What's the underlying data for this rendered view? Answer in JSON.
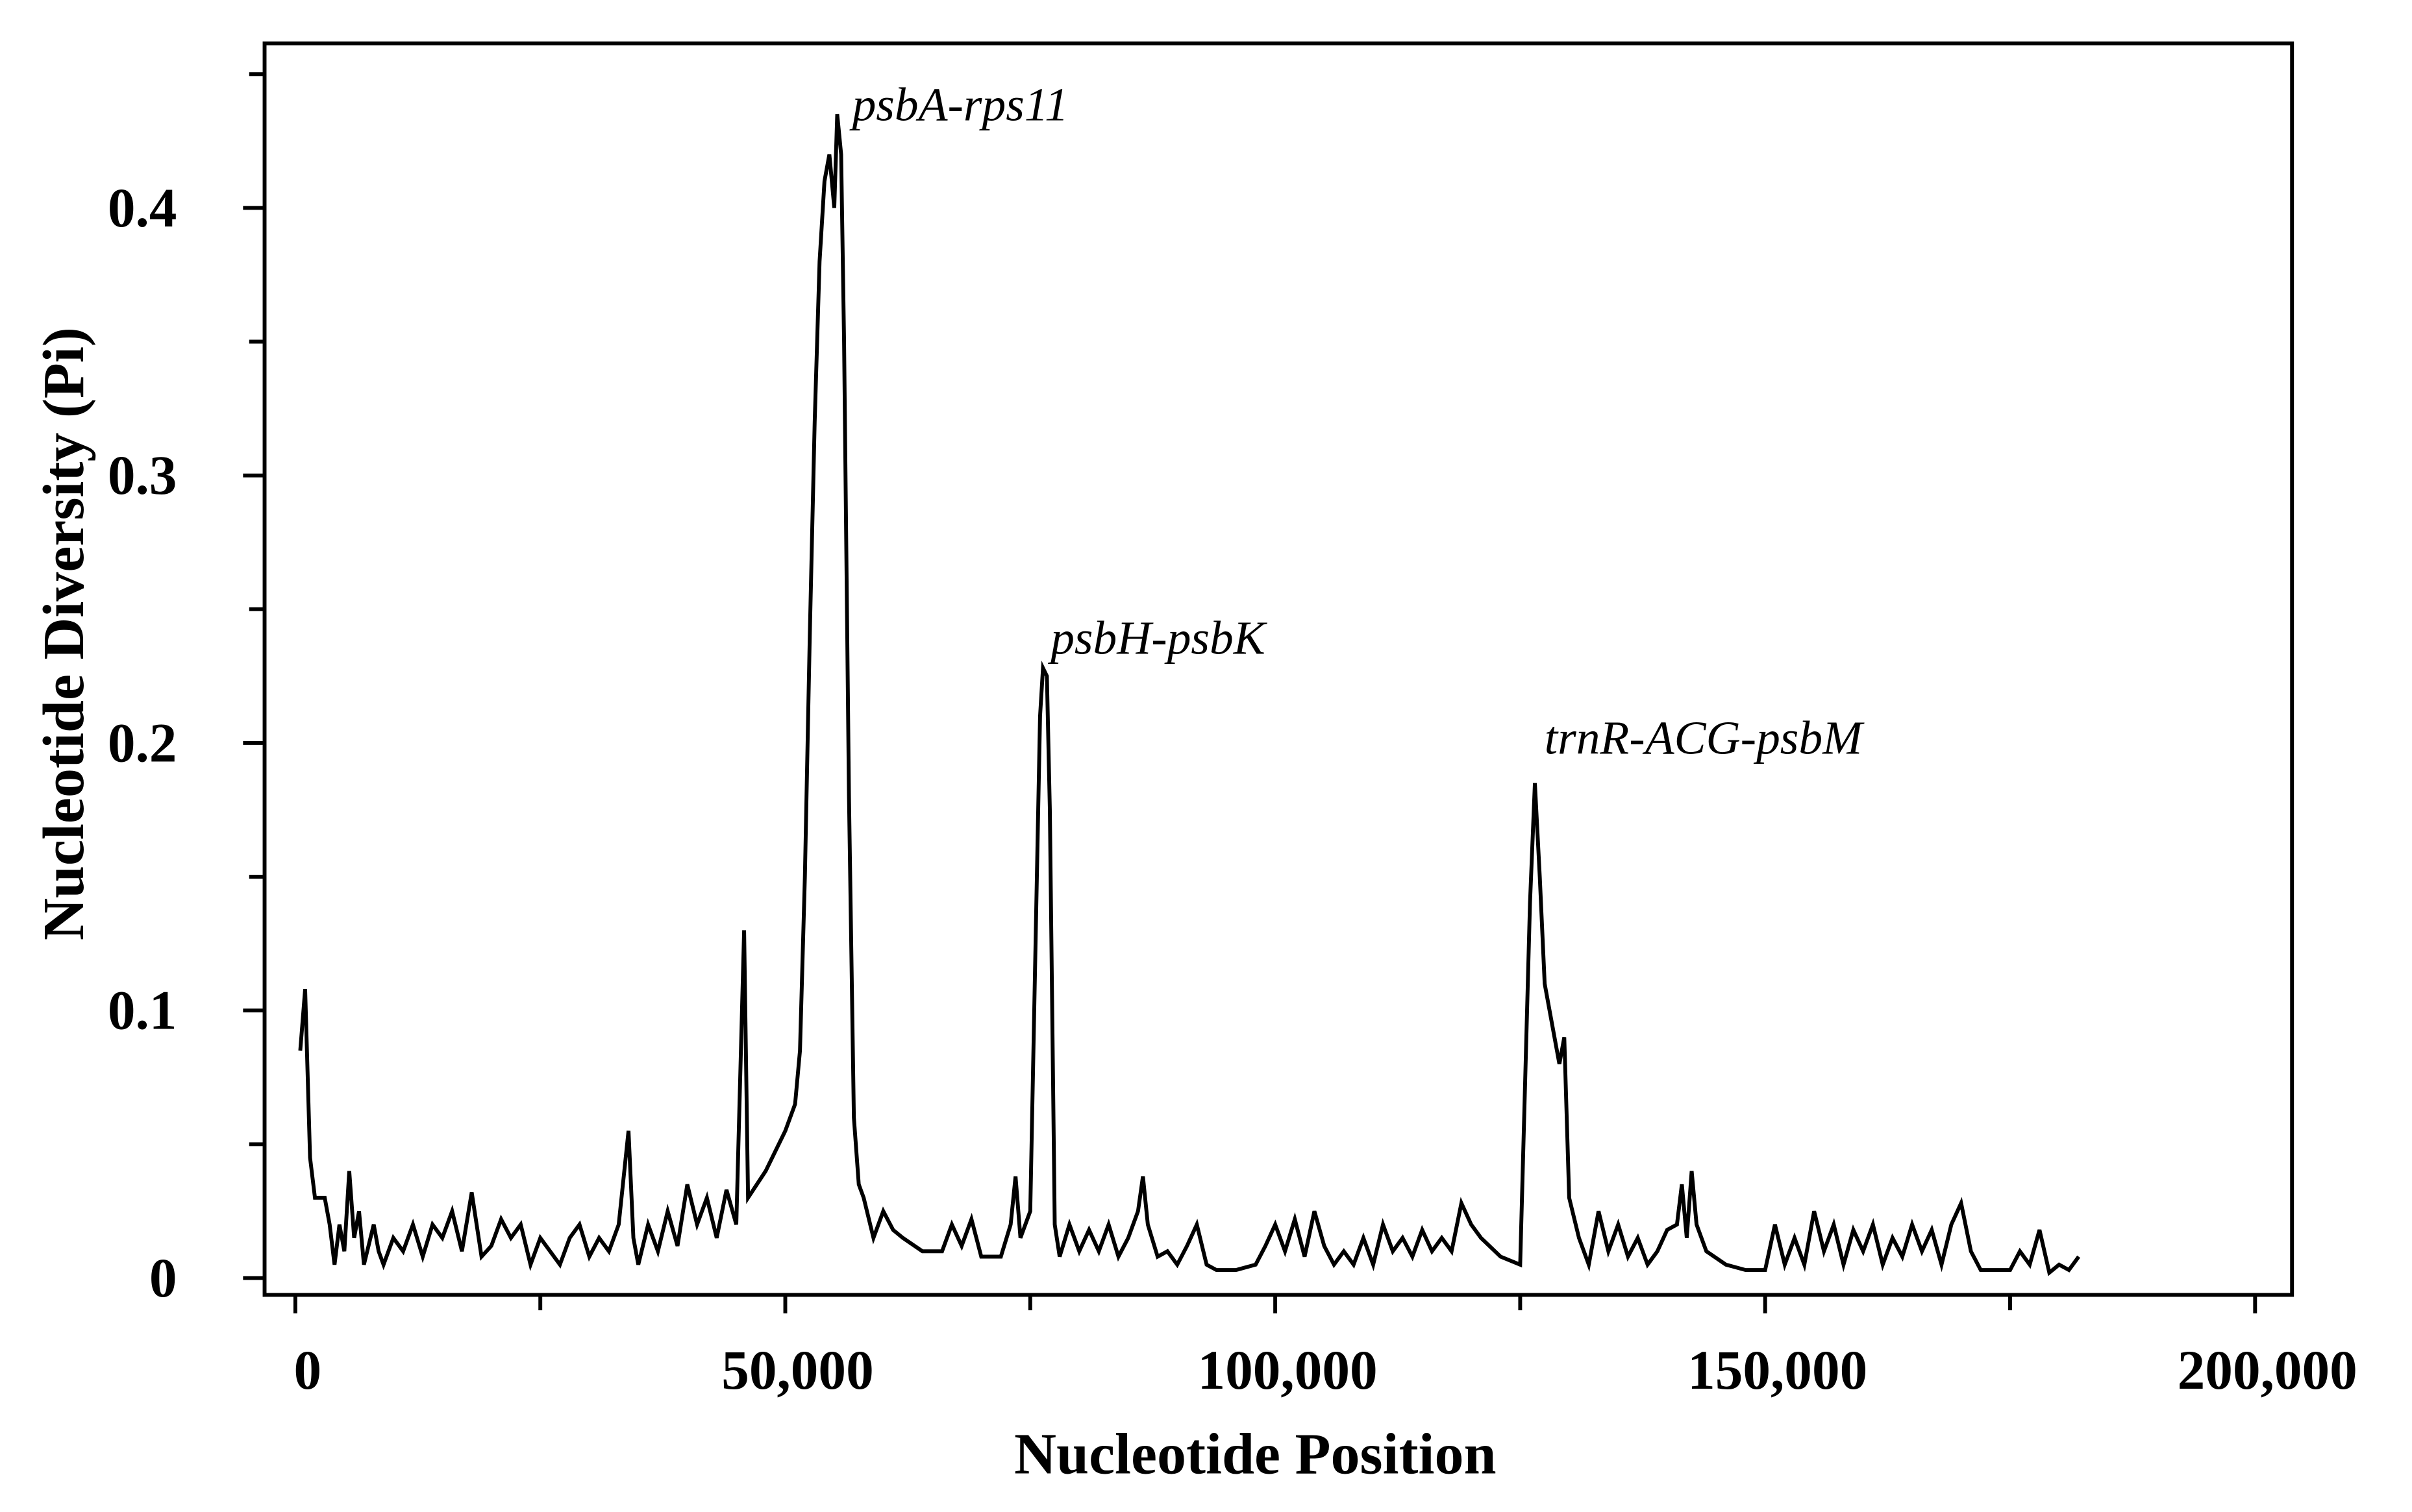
{
  "chart_data": {
    "type": "line",
    "xlabel": "Nucleotide Position",
    "ylabel": "Nucleotide Diversity (Pi)",
    "color": "#000000",
    "annotations": [
      "psbA-rps11",
      "psbH-psbK",
      "trnR-ACG-psbM"
    ],
    "xlim": [
      -3140,
      203770
    ],
    "ylim": [
      -0.0063,
      0.4615
    ],
    "xticks": [
      0,
      {
        "value": 50000,
        "label": "50,000"
      },
      {
        "value": 100000,
        "label": "100,000"
      },
      {
        "value": 150000,
        "label": "150,000"
      },
      {
        "value": 200000,
        "label": "200,000"
      }
    ],
    "xminorticks": [
      25000,
      75000,
      125000,
      175000
    ],
    "yticks": [
      0,
      0.1,
      0.2,
      0.3,
      0.4
    ],
    "yminorticks": [
      0.05,
      0.15,
      0.25,
      0.35,
      0.45
    ],
    "x": [
      500,
      1000,
      1500,
      2000,
      3000,
      3500,
      4000,
      4500,
      5000,
      5500,
      6000,
      6500,
      7000,
      8000,
      8500,
      9000,
      10000,
      11000,
      12000,
      13000,
      14000,
      15000,
      16000,
      17000,
      18000,
      19000,
      20000,
      21000,
      22000,
      23000,
      24000,
      25000,
      26000,
      27000,
      28000,
      29000,
      30000,
      31000,
      32000,
      33000,
      34000,
      34500,
      35000,
      36000,
      37000,
      38000,
      39000,
      40000,
      41000,
      42000,
      43000,
      44000,
      45000,
      45800,
      46200,
      48000,
      50000,
      51000,
      51500,
      52000,
      52500,
      53000,
      53500,
      54000,
      54500,
      55000,
      55300,
      55700,
      56000,
      56500,
      57000,
      57500,
      58000,
      59000,
      60000,
      61000,
      62000,
      64000,
      66000,
      67000,
      68000,
      69000,
      70000,
      72000,
      73000,
      73500,
      74000,
      75000,
      76000,
      76300,
      76700,
      77000,
      77500,
      78000,
      79000,
      80000,
      81000,
      82000,
      83000,
      84000,
      85000,
      86000,
      86500,
      87000,
      88000,
      89000,
      90000,
      91000,
      92000,
      93000,
      94000,
      96000,
      98000,
      99000,
      100000,
      101000,
      102000,
      103000,
      104000,
      105000,
      106000,
      107000,
      108000,
      109000,
      110000,
      111000,
      112000,
      113000,
      114000,
      115000,
      116000,
      117000,
      118000,
      119000,
      120000,
      121000,
      123000,
      125000,
      126000,
      126500,
      127000,
      127500,
      128000,
      128500,
      129000,
      129500,
      130000,
      131000,
      132000,
      133000,
      134000,
      135000,
      136000,
      137000,
      138000,
      139000,
      140000,
      141000,
      141500,
      142000,
      142500,
      143000,
      144000,
      146000,
      148000,
      150000,
      151000,
      152000,
      153000,
      154000,
      155000,
      156000,
      157000,
      158000,
      159000,
      160000,
      161000,
      162000,
      163000,
      164000,
      165000,
      166000,
      167000,
      168000,
      169000,
      170000,
      171000,
      172000,
      175000,
      176000,
      177000,
      178000,
      179000,
      180000,
      181000,
      182000
    ],
    "values": [
      0.085,
      0.108,
      0.045,
      0.03,
      0.03,
      0.02,
      0.005,
      0.02,
      0.01,
      0.04,
      0.015,
      0.025,
      0.005,
      0.02,
      0.01,
      0.005,
      0.015,
      0.01,
      0.02,
      0.008,
      0.02,
      0.015,
      0.025,
      0.01,
      0.032,
      0.008,
      0.012,
      0.022,
      0.015,
      0.02,
      0.005,
      0.015,
      0.01,
      0.005,
      0.015,
      0.02,
      0.008,
      0.015,
      0.01,
      0.02,
      0.055,
      0.015,
      0.005,
      0.02,
      0.01,
      0.025,
      0.012,
      0.035,
      0.02,
      0.03,
      0.015,
      0.033,
      0.02,
      0.13,
      0.03,
      0.04,
      0.055,
      0.065,
      0.085,
      0.15,
      0.24,
      0.32,
      0.38,
      0.41,
      0.42,
      0.4,
      0.435,
      0.42,
      0.35,
      0.18,
      0.06,
      0.035,
      0.03,
      0.015,
      0.025,
      0.018,
      0.015,
      0.01,
      0.01,
      0.02,
      0.012,
      0.022,
      0.008,
      0.008,
      0.02,
      0.038,
      0.015,
      0.025,
      0.21,
      0.228,
      0.225,
      0.175,
      0.02,
      0.008,
      0.02,
      0.01,
      0.018,
      0.01,
      0.02,
      0.008,
      0.015,
      0.025,
      0.038,
      0.02,
      0.008,
      0.01,
      0.005,
      0.012,
      0.02,
      0.005,
      0.003,
      0.003,
      0.005,
      0.012,
      0.02,
      0.01,
      0.022,
      0.008,
      0.025,
      0.012,
      0.005,
      0.01,
      0.005,
      0.015,
      0.005,
      0.02,
      0.01,
      0.015,
      0.008,
      0.018,
      0.01,
      0.015,
      0.01,
      0.028,
      0.02,
      0.015,
      0.008,
      0.005,
      0.14,
      0.185,
      0.15,
      0.11,
      0.1,
      0.09,
      0.08,
      0.09,
      0.03,
      0.015,
      0.005,
      0.025,
      0.01,
      0.02,
      0.008,
      0.015,
      0.005,
      0.01,
      0.018,
      0.02,
      0.035,
      0.015,
      0.04,
      0.02,
      0.01,
      0.005,
      0.003,
      0.003,
      0.02,
      0.005,
      0.015,
      0.005,
      0.025,
      0.01,
      0.02,
      0.005,
      0.018,
      0.01,
      0.02,
      0.005,
      0.015,
      0.008,
      0.02,
      0.01,
      0.018,
      0.005,
      0.02,
      0.028,
      0.01,
      0.003,
      0.003,
      0.01,
      0.005,
      0.018,
      0.002,
      0.005,
      0.003,
      0.008
    ]
  }
}
